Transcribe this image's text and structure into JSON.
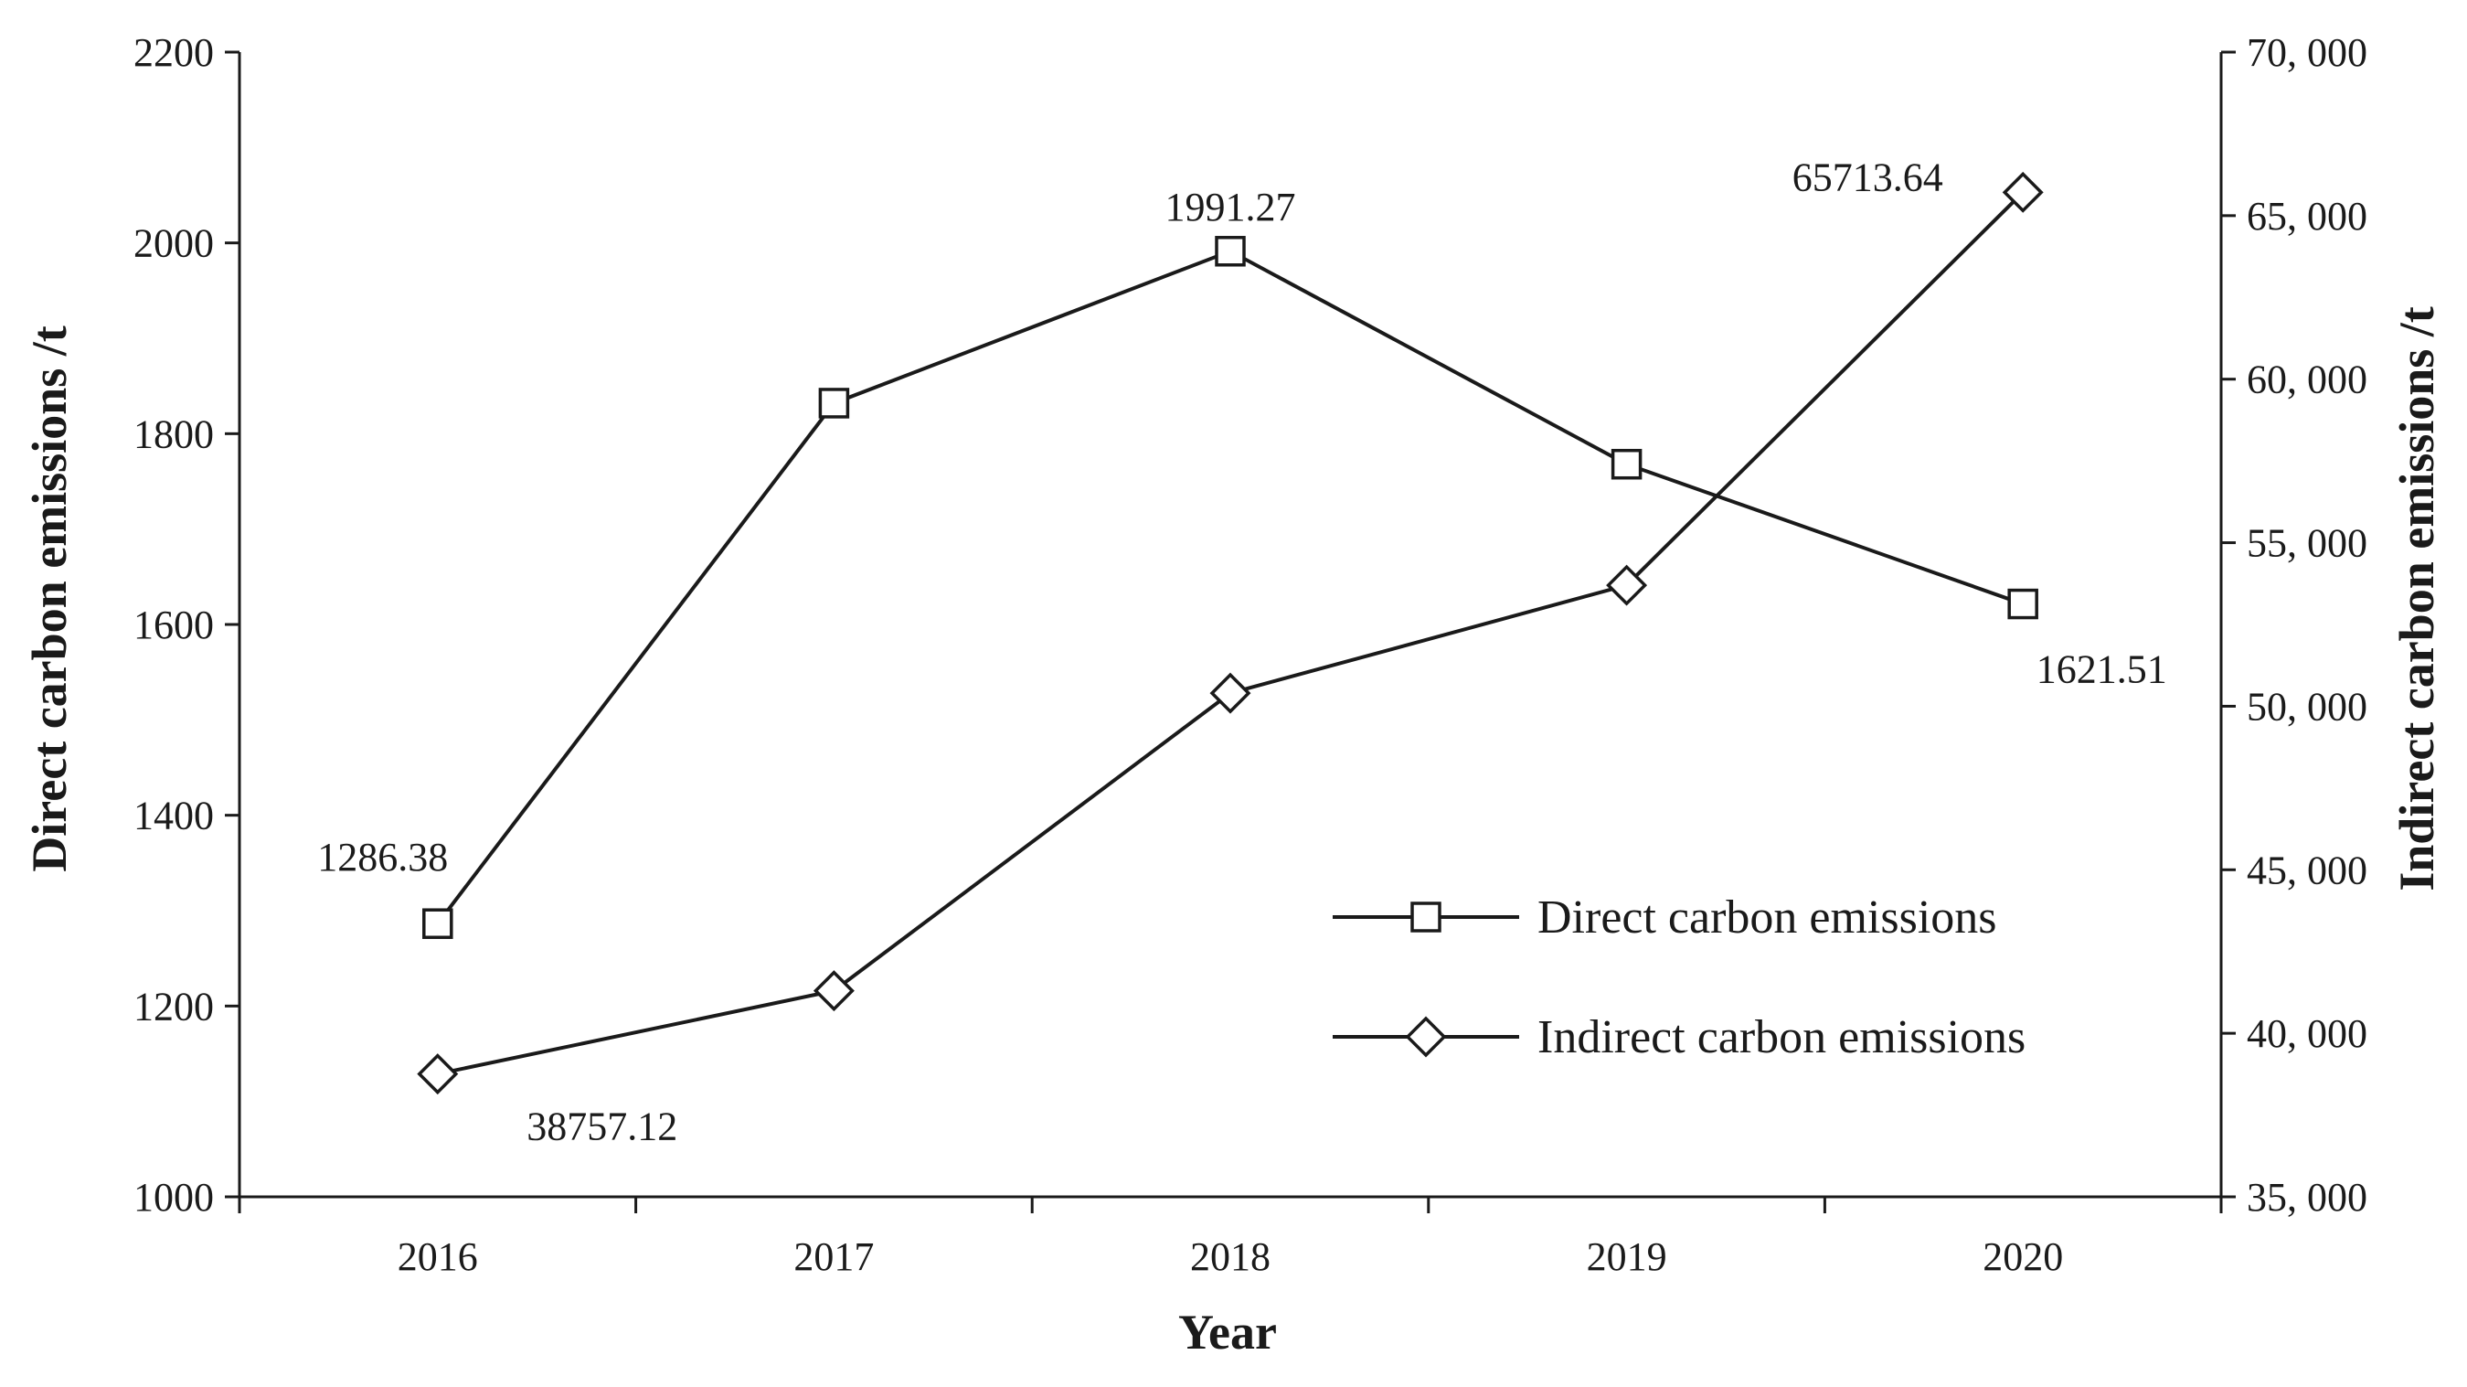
{
  "chart_data": {
    "type": "line",
    "title": "",
    "xlabel": "Year",
    "ylabel": "Direct carbon emissions /t",
    "y2label": "Indirect carbon emissions /t",
    "categories": [
      "2016",
      "2017",
      "2018",
      "2019",
      "2020"
    ],
    "ylim": [
      1000,
      2200
    ],
    "y2lim": [
      35000,
      70000
    ],
    "yticks": [
      "1000",
      "1200",
      "1400",
      "1600",
      "1800",
      "2000",
      "2200"
    ],
    "y2ticks": [
      "35, 000",
      "40, 000",
      "45, 000",
      "50, 000",
      "55, 000",
      "60, 000",
      "65, 000",
      "70, 000"
    ],
    "grid": false,
    "legend_position": "bottom-right",
    "series": [
      {
        "name": "Direct carbon emissions",
        "axis": "left",
        "marker": "square",
        "values": [
          1286.38,
          1832,
          1991.27,
          1768,
          1621.51
        ],
        "labels": [
          "1286.38",
          "",
          "1991.27",
          "",
          "1621.51"
        ]
      },
      {
        "name": "Indirect carbon emissions",
        "axis": "right",
        "marker": "diamond",
        "values": [
          38757.12,
          41300,
          50400,
          53700,
          65713.64
        ],
        "labels": [
          "38757.12",
          "",
          "",
          "",
          "65713.64"
        ]
      }
    ],
    "colors": {
      "line": "#1a1a1a",
      "marker_fill": "#ffffff"
    }
  }
}
